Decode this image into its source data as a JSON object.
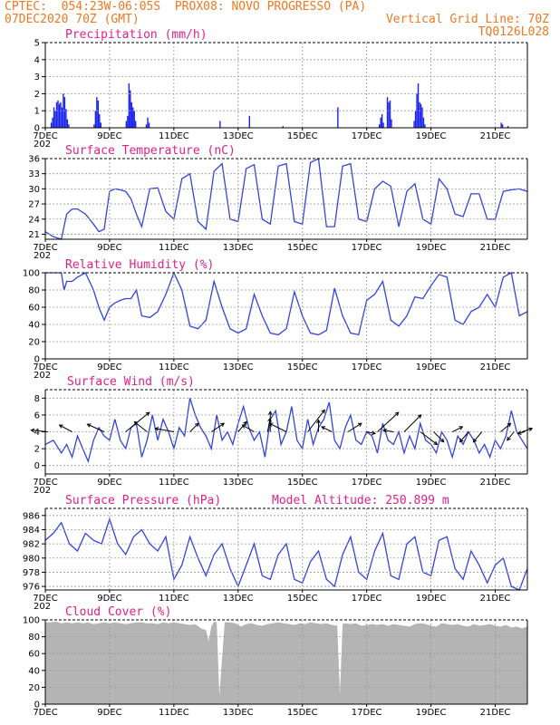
{
  "header": {
    "line1_left": "CPTEC:  054:23W-06:05S  PROX08: NOVO PROGRESSO (PA)",
    "line2_left": "07DEC2020 70Z (GMT)",
    "line2_right": "Vertical Grid Line: 70Z",
    "line3_right": "TQ0126L028"
  },
  "colors": {
    "header": "#f07820",
    "title": "#e0208a",
    "line": "#3344dd",
    "bar": "#1a22ee",
    "cloud": "#b4b4b4",
    "grid": "#9a9a9a"
  },
  "x_axis": {
    "ticks": [
      "7DEC",
      "9DEC",
      "11DEC",
      "13DEC",
      "15DEC",
      "17DEC",
      "19DEC",
      "21DEC"
    ],
    "tick_hours": [
      0,
      48,
      96,
      144,
      192,
      240,
      288,
      336
    ],
    "range_hours": [
      0,
      360
    ],
    "cutoff_label": "202"
  },
  "chart_data": [
    {
      "id": "precip",
      "type": "bar",
      "title": "Precipitation (mm/h)",
      "ylim": [
        0,
        5
      ],
      "yticks": [
        0,
        1,
        2,
        3,
        4,
        5
      ],
      "grid": true,
      "x_unit": "hours since 07DEC 00Z",
      "bars": [
        [
          4,
          0.3
        ],
        [
          5,
          0.6
        ],
        [
          6,
          1.2
        ],
        [
          7,
          1.0
        ],
        [
          8,
          1.5
        ],
        [
          9,
          1.6
        ],
        [
          10,
          1.4
        ],
        [
          11,
          1.5
        ],
        [
          12,
          1.2
        ],
        [
          13,
          2.0
        ],
        [
          14,
          1.8
        ],
        [
          15,
          1.1
        ],
        [
          16,
          0.5
        ],
        [
          17,
          0.2
        ],
        [
          36,
          0.2
        ],
        [
          37,
          1.0
        ],
        [
          38,
          1.8
        ],
        [
          39,
          1.6
        ],
        [
          40,
          0.8
        ],
        [
          41,
          0.3
        ],
        [
          60,
          0.4
        ],
        [
          61,
          0.7
        ],
        [
          62,
          2.6
        ],
        [
          63,
          2.2
        ],
        [
          64,
          1.5
        ],
        [
          65,
          1.2
        ],
        [
          66,
          1.0
        ],
        [
          67,
          0.4
        ],
        [
          75,
          0.2
        ],
        [
          76,
          0.6
        ],
        [
          77,
          0.3
        ],
        [
          130,
          0.4
        ],
        [
          152,
          0.7
        ],
        [
          177,
          0.1
        ],
        [
          218,
          1.2
        ],
        [
          249,
          0.2
        ],
        [
          250,
          0.6
        ],
        [
          251,
          0.8
        ],
        [
          252,
          0.3
        ],
        [
          255,
          1.8
        ],
        [
          256,
          1.5
        ],
        [
          257,
          1.6
        ],
        [
          258,
          0.5
        ],
        [
          275,
          0.4
        ],
        [
          276,
          1.0
        ],
        [
          277,
          2.0
        ],
        [
          278,
          2.6
        ],
        [
          279,
          1.5
        ],
        [
          280,
          1.4
        ],
        [
          281,
          1.2
        ],
        [
          282,
          0.6
        ],
        [
          283,
          0.2
        ],
        [
          340,
          0.3
        ],
        [
          341,
          0.2
        ],
        [
          345,
          0.1
        ]
      ]
    },
    {
      "id": "temp",
      "type": "line",
      "title": "Surface Temperature (nC)",
      "ylim": [
        20,
        36
      ],
      "yticks": [
        21,
        24,
        27,
        30,
        33,
        36
      ],
      "grid": true,
      "x": [
        0,
        6,
        12,
        16,
        20,
        24,
        30,
        36,
        40,
        44,
        48,
        52,
        56,
        60,
        64,
        68,
        72,
        78,
        84,
        90,
        96,
        102,
        108,
        114,
        120,
        126,
        132,
        138,
        144,
        150,
        156,
        162,
        168,
        174,
        180,
        186,
        192,
        198,
        204,
        210,
        216,
        222,
        228,
        234,
        240,
        246,
        252,
        258,
        264,
        270,
        276,
        282,
        288,
        294,
        300,
        306,
        312,
        318,
        324,
        330,
        336,
        342,
        348,
        354,
        360
      ],
      "y": [
        21.5,
        20.5,
        20.0,
        25.0,
        26.0,
        26.0,
        25.0,
        23.0,
        21.5,
        22.0,
        29.5,
        30.0,
        29.8,
        29.5,
        28.0,
        25.0,
        22.5,
        30.0,
        30.2,
        25.5,
        24.0,
        32.0,
        33.0,
        23.5,
        22.0,
        33.5,
        35.0,
        24.0,
        23.5,
        34.0,
        34.8,
        24.0,
        23.0,
        34.5,
        35.0,
        23.5,
        23.0,
        35.2,
        36.0,
        22.5,
        22.5,
        34.5,
        35.0,
        24.0,
        23.5,
        30.0,
        31.5,
        30.5,
        22.5,
        29.5,
        31.0,
        24.0,
        23.0,
        32.0,
        30.0,
        25.0,
        24.5,
        29.0,
        29.0,
        24.0,
        24.0,
        29.5,
        29.8,
        30.0,
        29.5
      ]
    },
    {
      "id": "rh",
      "type": "line",
      "title": "Relative Humidity (%)",
      "ylim": [
        0,
        100
      ],
      "yticks": [
        0,
        20,
        40,
        60,
        80,
        100
      ],
      "grid": true,
      "x": [
        0,
        6,
        12,
        14,
        16,
        20,
        24,
        30,
        36,
        40,
        44,
        48,
        52,
        56,
        60,
        64,
        68,
        72,
        78,
        84,
        90,
        96,
        102,
        108,
        114,
        120,
        126,
        132,
        138,
        144,
        150,
        156,
        162,
        168,
        174,
        180,
        186,
        192,
        198,
        204,
        210,
        216,
        222,
        228,
        234,
        240,
        246,
        252,
        258,
        264,
        270,
        276,
        282,
        288,
        294,
        300,
        306,
        312,
        318,
        324,
        330,
        336,
        342,
        348,
        354,
        360
      ],
      "y": [
        100,
        100,
        100,
        80,
        90,
        90,
        95,
        100,
        80,
        60,
        45,
        60,
        65,
        68,
        70,
        70,
        80,
        50,
        48,
        55,
        75,
        100,
        80,
        38,
        35,
        45,
        90,
        60,
        35,
        30,
        35,
        75,
        50,
        30,
        28,
        35,
        78,
        50,
        30,
        28,
        33,
        82,
        50,
        30,
        28,
        68,
        75,
        90,
        45,
        38,
        50,
        72,
        70,
        85,
        98,
        95,
        45,
        40,
        55,
        60,
        75,
        60,
        95,
        100,
        50,
        55
      ]
    },
    {
      "id": "wind",
      "type": "line",
      "title": "Surface Wind (m/s)",
      "ylim": [
        -1,
        9
      ],
      "yticks": [
        0,
        2,
        4,
        6,
        8
      ],
      "grid": true,
      "x": [
        0,
        6,
        12,
        16,
        20,
        24,
        28,
        32,
        36,
        40,
        44,
        48,
        52,
        56,
        60,
        64,
        68,
        72,
        76,
        80,
        84,
        88,
        92,
        96,
        100,
        104,
        108,
        112,
        116,
        120,
        124,
        128,
        132,
        136,
        140,
        144,
        148,
        152,
        156,
        160,
        164,
        168,
        172,
        176,
        180,
        184,
        188,
        192,
        196,
        200,
        204,
        208,
        212,
        216,
        220,
        224,
        228,
        232,
        236,
        240,
        244,
        248,
        252,
        256,
        260,
        264,
        268,
        272,
        276,
        280,
        284,
        288,
        292,
        296,
        300,
        304,
        308,
        312,
        316,
        320,
        324,
        328,
        332,
        336,
        340,
        344,
        348,
        352,
        356,
        360
      ],
      "y": [
        2.5,
        3.0,
        1.5,
        2.5,
        1.0,
        3.5,
        2.0,
        0.5,
        3.0,
        4.5,
        3.5,
        3.0,
        5.5,
        3.0,
        2.0,
        4.5,
        5.0,
        1.0,
        3.0,
        6.0,
        3.0,
        5.5,
        4.0,
        2.0,
        4.5,
        3.5,
        8.0,
        6.0,
        4.5,
        3.5,
        2.0,
        6.0,
        3.0,
        4.0,
        2.5,
        5.0,
        7.0,
        4.5,
        3.0,
        4.0,
        1.0,
        5.5,
        6.5,
        2.5,
        4.0,
        7.0,
        3.0,
        2.0,
        5.5,
        2.5,
        4.5,
        5.5,
        7.5,
        3.0,
        2.0,
        4.5,
        6.0,
        3.0,
        2.5,
        4.0,
        3.5,
        1.5,
        5.0,
        3.0,
        2.5,
        4.0,
        1.5,
        3.5,
        2.0,
        5.0,
        3.0,
        2.5,
        1.5,
        4.0,
        3.0,
        1.0,
        3.5,
        2.5,
        4.0,
        3.0,
        1.5,
        2.5,
        1.0,
        3.0,
        2.0,
        3.5,
        6.5,
        4.0,
        3.0,
        2.0
      ],
      "arrows_at_y": 4,
      "arrows": [
        [
          2,
          -2,
          0.2
        ],
        [
          20,
          -1.5,
          0.8
        ],
        [
          44,
          -2,
          0.9
        ],
        [
          60,
          2.8,
          2.3
        ],
        [
          76,
          -1.5,
          1.2
        ],
        [
          96,
          -2.2,
          0.4
        ],
        [
          108,
          1,
          1
        ],
        [
          124,
          1.5,
          1
        ],
        [
          144,
          1,
          1.2
        ],
        [
          156,
          -1.4,
          0.8
        ],
        [
          166,
          0.3,
          1.6
        ],
        [
          168,
          0,
          2.4
        ],
        [
          180,
          -2,
          1
        ],
        [
          196,
          2,
          2.6
        ],
        [
          204,
          0,
          1.4
        ],
        [
          214,
          -1.2,
          0.6
        ],
        [
          226,
          1.6,
          1
        ],
        [
          240,
          1,
          -0.2
        ],
        [
          248,
          2.5,
          2.3
        ],
        [
          260,
          -1.2,
          0.2
        ],
        [
          268,
          2,
          2
        ],
        [
          280,
          2,
          -1.5
        ],
        [
          290,
          1.2,
          -1.2
        ],
        [
          304,
          1.2,
          0.6
        ],
        [
          316,
          -1,
          -1.2
        ],
        [
          326,
          -1,
          -1.2
        ],
        [
          340,
          1.2,
          1
        ],
        [
          350,
          -0.8,
          -1
        ],
        [
          356,
          1.2,
          0.4
        ],
        [
          358,
          -0.8,
          -0.2
        ]
      ]
    },
    {
      "id": "pressure",
      "type": "line",
      "title": "Surface Pressure (hPa)",
      "annotation": "Model Altitude: 250.899 m",
      "ylim": [
        975.5,
        987
      ],
      "yticks": [
        976,
        978,
        980,
        982,
        984,
        986
      ],
      "grid": true,
      "x": [
        0,
        6,
        12,
        18,
        24,
        30,
        36,
        42,
        48,
        54,
        60,
        66,
        72,
        78,
        84,
        90,
        96,
        102,
        108,
        114,
        120,
        126,
        132,
        138,
        144,
        150,
        156,
        162,
        168,
        174,
        180,
        186,
        192,
        198,
        204,
        210,
        216,
        222,
        228,
        234,
        240,
        246,
        252,
        258,
        264,
        270,
        276,
        282,
        288,
        294,
        300,
        306,
        312,
        318,
        324,
        330,
        336,
        342,
        348,
        354,
        360
      ],
      "y": [
        982.5,
        983.5,
        985.0,
        982.0,
        981.0,
        983.5,
        982.5,
        982.0,
        985.5,
        982.0,
        980.5,
        983.0,
        984.0,
        982.0,
        981.0,
        983.0,
        977.0,
        979.0,
        983.0,
        980.0,
        977.5,
        980.5,
        982.0,
        978.5,
        976.0,
        979.0,
        982.0,
        977.5,
        977.0,
        980.5,
        982.0,
        977.0,
        976.5,
        979.5,
        981.0,
        977.0,
        976.0,
        980.5,
        983.0,
        978.0,
        977.0,
        981.0,
        983.5,
        977.5,
        977.0,
        982.0,
        983.0,
        978.0,
        977.5,
        982.5,
        983.0,
        978.5,
        977.0,
        981.0,
        979.0,
        976.5,
        979.0,
        980.0,
        976.0,
        975.5,
        978.5
      ]
    },
    {
      "id": "cloud",
      "type": "area",
      "title": "Cloud Cover (%)",
      "ylim": [
        0,
        100
      ],
      "yticks": [
        0,
        20,
        40,
        60,
        80,
        100
      ],
      "grid": true,
      "x": [
        0,
        4,
        8,
        12,
        16,
        20,
        24,
        28,
        32,
        36,
        40,
        44,
        48,
        52,
        56,
        60,
        64,
        68,
        72,
        76,
        80,
        84,
        88,
        92,
        96,
        100,
        104,
        108,
        112,
        116,
        120,
        122,
        124,
        126,
        128,
        130,
        134,
        138,
        142,
        146,
        150,
        154,
        158,
        162,
        166,
        170,
        174,
        178,
        182,
        186,
        190,
        194,
        198,
        202,
        206,
        210,
        214,
        218,
        220,
        222,
        224,
        228,
        232,
        236,
        240,
        244,
        248,
        252,
        256,
        260,
        264,
        268,
        272,
        276,
        280,
        284,
        288,
        292,
        296,
        300,
        304,
        308,
        312,
        316,
        320,
        324,
        328,
        332,
        336,
        340,
        344,
        348,
        352,
        356,
        360
      ],
      "y": [
        97,
        97,
        98,
        96,
        97,
        96,
        97,
        96,
        97,
        95,
        96,
        97,
        96,
        97,
        96,
        95,
        96,
        97,
        97,
        96,
        96,
        95,
        97,
        96,
        97,
        96,
        95,
        94,
        95,
        90,
        88,
        75,
        92,
        98,
        97,
        10,
        97,
        97,
        96,
        92,
        95,
        96,
        94,
        93,
        95,
        96,
        97,
        96,
        95,
        94,
        96,
        95,
        97,
        96,
        95,
        96,
        94,
        93,
        12,
        95,
        96,
        95,
        96,
        93,
        94,
        95,
        94,
        95,
        93,
        95,
        94,
        93,
        92,
        95,
        96,
        95,
        93,
        92,
        96,
        95,
        94,
        95,
        93,
        92,
        95,
        93,
        94,
        95,
        93,
        92,
        94,
        91,
        92,
        90,
        92
      ]
    }
  ]
}
